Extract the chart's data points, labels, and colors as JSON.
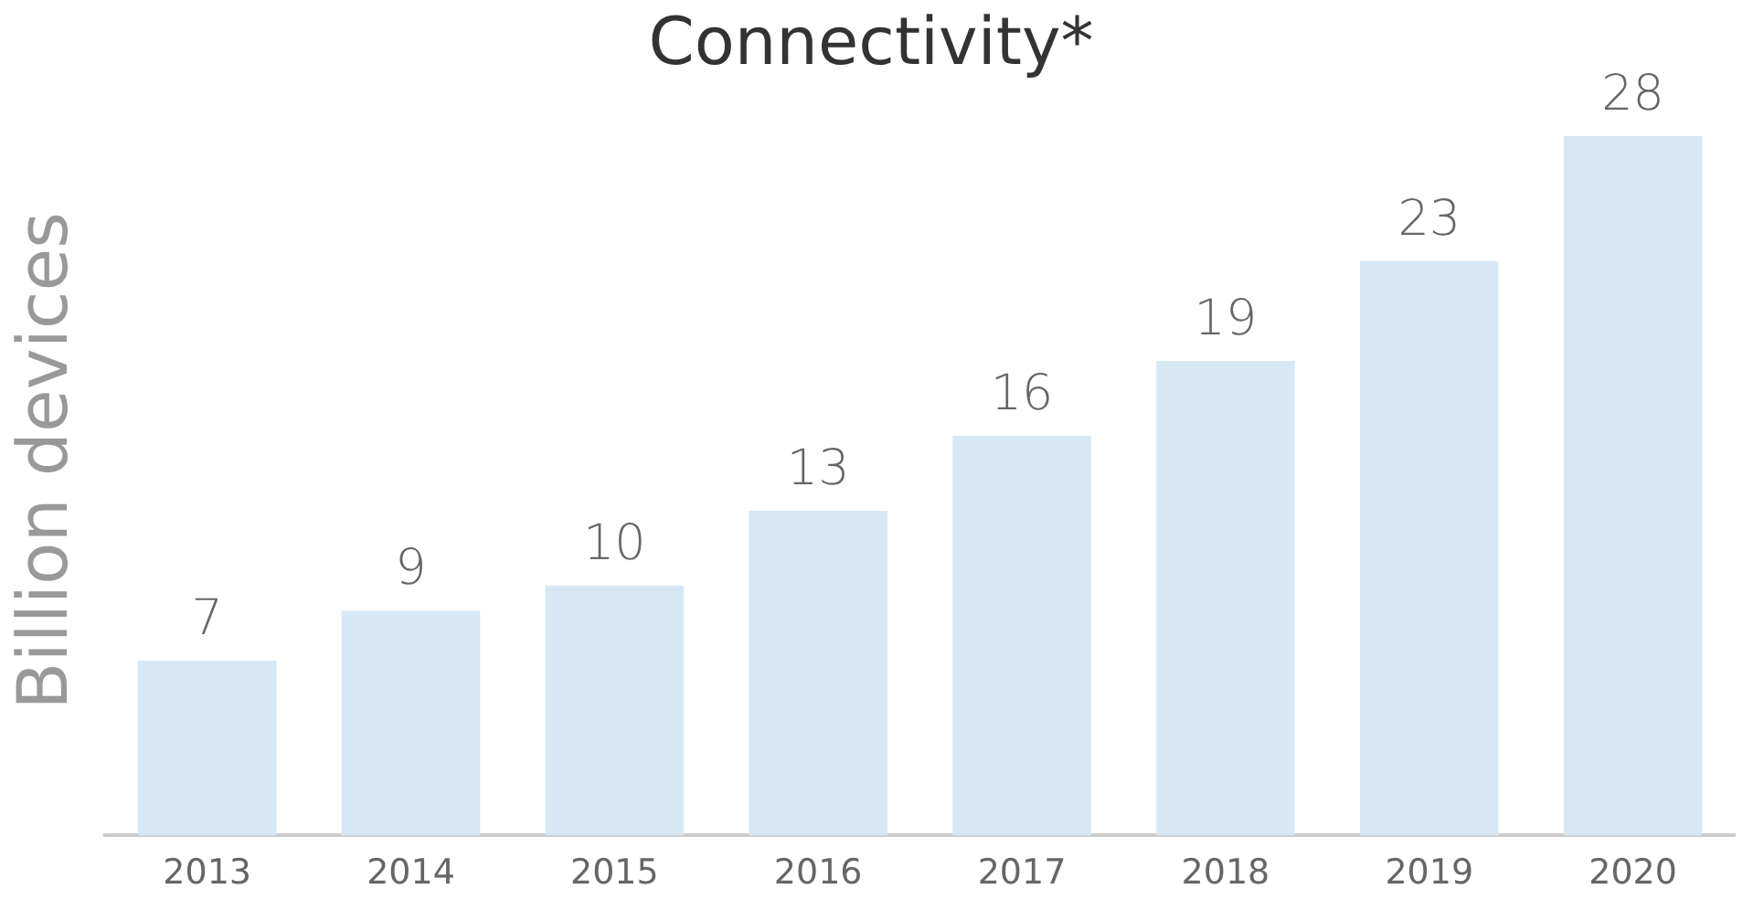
{
  "chart_data": {
    "type": "bar",
    "title": "Connectivity*",
    "ylabel": "Billion devices",
    "categories": [
      "2013",
      "2014",
      "2015",
      "2016",
      "2017",
      "2018",
      "2019",
      "2020"
    ],
    "values": [
      7,
      9,
      10,
      13,
      16,
      19,
      23,
      28
    ],
    "color": "#d6e8f4",
    "data_labels": true,
    "grid": false,
    "legend": false
  }
}
